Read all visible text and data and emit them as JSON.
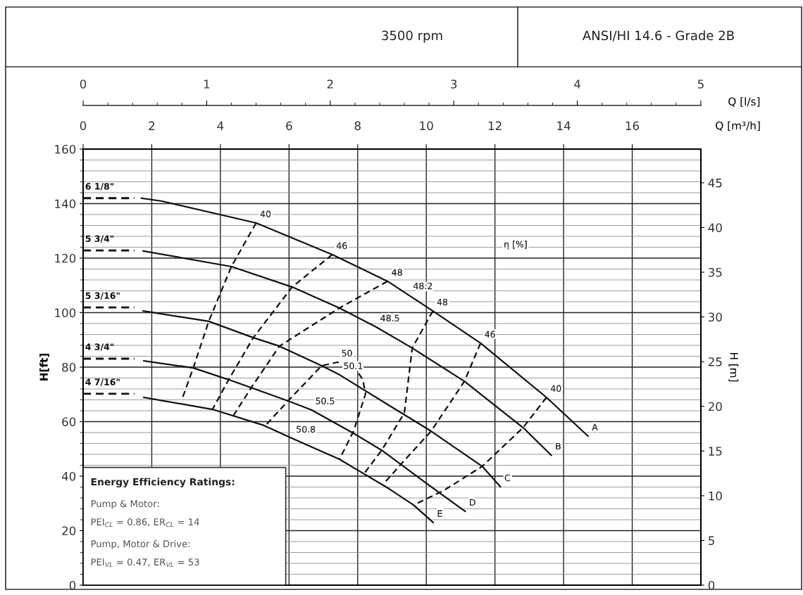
{
  "chart_data": {
    "type": "line",
    "title": "3500 rpm",
    "subtitle": "ANSI/HI 14.6 - Grade 2B",
    "ylabel": "H[ft]",
    "y2label": "H [m]",
    "xlabel": "Q [m³/h]",
    "x2label": "Q [l/s]",
    "xlim": [
      0,
      18
    ],
    "x2lim": [
      0,
      5
    ],
    "ylim": [
      0,
      160
    ],
    "y2lim": [
      0,
      48.768
    ],
    "xticks": [
      0,
      2,
      4,
      6,
      8,
      10,
      12,
      14,
      16
    ],
    "x2ticks": [
      0,
      1,
      2,
      3,
      4,
      5
    ],
    "yticks": [
      0,
      20,
      40,
      60,
      80,
      100,
      120,
      140,
      160
    ],
    "y2ticks": [
      0,
      5,
      10,
      15,
      20,
      25,
      30,
      35,
      40,
      45
    ],
    "grid": true,
    "marker": "none",
    "series": [
      {
        "name": "6 1/8\"",
        "type": "line",
        "color": "#111111",
        "line_style": "dashed",
        "x": [
          0,
          1.5
        ],
        "values": [
          142,
          142
        ]
      },
      {
        "type": "line",
        "color": "#111111",
        "line_style": "solid",
        "x": [
          1.7,
          2.3,
          5.04,
          7.26,
          8.87,
          10.19,
          11.58,
          13.5,
          14.71
        ],
        "values": [
          142,
          140.9,
          132.9,
          121.3,
          111.5,
          100.6,
          88.8,
          68.9,
          54.7
        ]
      },
      {
        "name": "5 3/4\"",
        "type": "line",
        "color": "#111111",
        "line_style": "dashed",
        "x": [
          0,
          1.5
        ],
        "values": [
          122.8,
          122.8
        ]
      },
      {
        "type": "line",
        "color": "#111111",
        "line_style": "solid",
        "x": [
          1.75,
          4.32,
          6.09,
          7.47,
          8.54,
          9.59,
          11.11,
          12.82,
          13.64
        ],
        "values": [
          122.6,
          116.9,
          109.4,
          101.7,
          94.7,
          87,
          74.8,
          57.8,
          47.7
        ]
      },
      {
        "name": "5 3/16\"",
        "type": "line",
        "color": "#111111",
        "line_style": "dashed",
        "x": [
          0,
          1.5
        ],
        "values": [
          101.9,
          101.9
        ]
      },
      {
        "type": "line",
        "color": "#111111",
        "line_style": "solid",
        "x": [
          1.75,
          3.66,
          4.96,
          5.72,
          6.95,
          7.47,
          8.91,
          10.14,
          11.63,
          12.16
        ],
        "values": [
          100.6,
          96.8,
          90.8,
          87.7,
          80.5,
          77.2,
          66,
          56.5,
          43.6,
          36.1
        ]
      },
      {
        "name": "4 3/4\"",
        "type": "line",
        "color": "#111111",
        "line_style": "dashed",
        "x": [
          0,
          1.5
        ],
        "values": [
          83.1,
          83.1
        ]
      },
      {
        "type": "line",
        "color": "#111111",
        "line_style": "solid",
        "x": [
          1.77,
          3.21,
          4.24,
          5.97,
          6.65,
          7.84,
          8.7,
          10.14,
          11.13
        ],
        "values": [
          82.3,
          79.7,
          75.4,
          67.6,
          64.3,
          56,
          49.5,
          36.1,
          27.1
        ]
      },
      {
        "name": "4 7/16\"",
        "type": "line",
        "color": "#111111",
        "line_style": "dashed",
        "x": [
          0,
          1.5
        ],
        "values": [
          70.2,
          70.2
        ]
      },
      {
        "type": "line",
        "color": "#111111",
        "line_style": "solid",
        "x": [
          1.77,
          3.77,
          5.27,
          6.09,
          7.47,
          8.91,
          9.63,
          10.2
        ],
        "values": [
          68.9,
          64.5,
          58.6,
          53.9,
          46.2,
          35.4,
          29.4,
          23
        ]
      },
      {
        "type": "line",
        "color": "#111111",
        "line_style": "dashed",
        "x": [
          5.04,
          4.32,
          3.66,
          3.21,
          2.9
        ],
        "values": [
          132.9,
          116.9,
          96.8,
          79.7,
          68.9
        ]
      },
      {
        "type": "line",
        "color": "#111111",
        "line_style": "dashed",
        "x": [
          7.26,
          6.09,
          4.96,
          4.24,
          3.77
        ],
        "values": [
          121.3,
          109.4,
          90.8,
          75.4,
          64.5
        ]
      },
      {
        "type": "line",
        "color": "#111111",
        "line_style": "dashed",
        "x": [
          8.87,
          7.47,
          5.72,
          4.9,
          4.38
        ],
        "values": [
          111.5,
          101.7,
          87.7,
          72.5,
          62.2
        ]
      },
      {
        "type": "line",
        "color": "#111111",
        "line_style": "dashed",
        "x": [
          10.19,
          9.59,
          9.36,
          8.7,
          8.19
        ],
        "values": [
          100.6,
          87,
          63.2,
          49.5,
          41
        ]
      },
      {
        "type": "line",
        "color": "#111111",
        "line_style": "dashed",
        "x": [
          11.58,
          11.11,
          10.14,
          9.32,
          8.77
        ],
        "values": [
          88.8,
          74.8,
          56.5,
          45.2,
          37.4
        ]
      },
      {
        "type": "line",
        "color": "#111111",
        "line_style": "dashed",
        "x": [
          13.5,
          12.82,
          11.63,
          10.49,
          9.63
        ],
        "values": [
          68.9,
          57.8,
          43.6,
          34.6,
          29.4
        ]
      },
      {
        "type": "line",
        "color": "#111111",
        "line_style": "dashed",
        "x": [
          5.35,
          5.97,
          6.95,
          7.41,
          7.88,
          8.15,
          8.23,
          7.88,
          7.47
        ],
        "values": [
          59.1,
          67.6,
          80.5,
          81.8,
          80.5,
          75.4,
          70.2,
          56.5,
          46.2
        ]
      }
    ],
    "annotations": [
      {
        "text": "40",
        "x": 5.04,
        "y": 132.9
      },
      {
        "text": "46",
        "x": 7.26,
        "y": 121.3
      },
      {
        "text": "48",
        "x": 8.87,
        "y": 111.5
      },
      {
        "text": "48.2",
        "x": 9.5,
        "y": 106.5
      },
      {
        "text": "48",
        "x": 10.19,
        "y": 100.6
      },
      {
        "text": "46",
        "x": 11.58,
        "y": 88.8
      },
      {
        "text": "40",
        "x": 13.5,
        "y": 68.9
      },
      {
        "text": "48.5",
        "x": 8.54,
        "y": 94.7
      },
      {
        "text": "50",
        "x": 7.41,
        "y": 81.8
      },
      {
        "text": "50.1",
        "x": 7.47,
        "y": 77.2
      },
      {
        "text": "50.5",
        "x": 6.65,
        "y": 64.3
      },
      {
        "text": "50.8",
        "x": 6.09,
        "y": 53.9
      },
      {
        "text": "A",
        "x": 14.71,
        "y": 54.7
      },
      {
        "text": "B",
        "x": 13.64,
        "y": 47.7
      },
      {
        "text": "C",
        "x": 12.16,
        "y": 36.1
      },
      {
        "text": "D",
        "x": 11.13,
        "y": 27.1
      },
      {
        "text": "E",
        "x": 10.2,
        "y": 23
      },
      "η [%]",
      "Energy Efficiency Ratings:",
      "Pump & Motor:",
      "PEI$_{CL}$ = 0.86, ER$_{CL}$ = 14",
      "Pump, Motor & Drive:",
      "PEI$_{VL}$ = 0.47, ER$_{VL}$ = 53"
    ]
  }
}
